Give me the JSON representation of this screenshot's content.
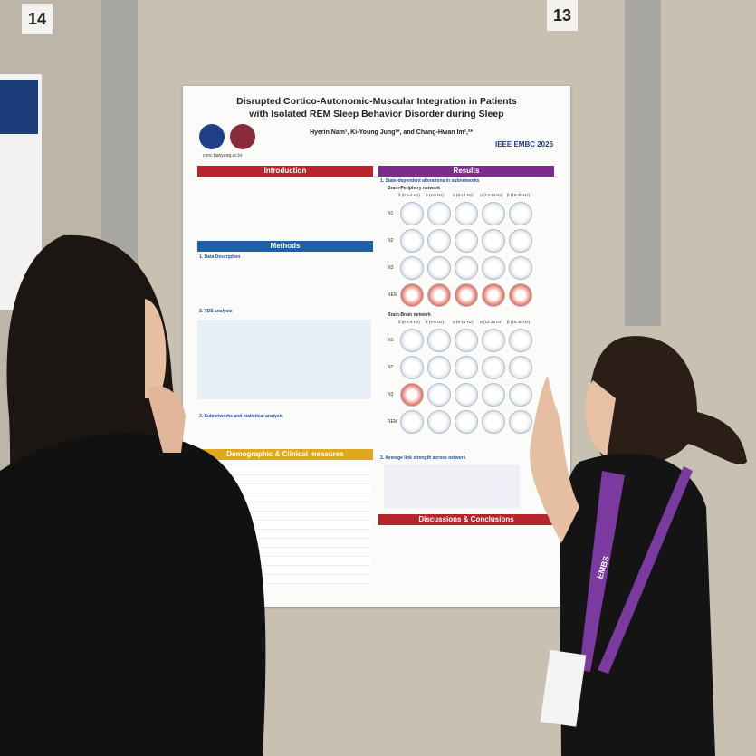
{
  "boards": [
    "14",
    "13"
  ],
  "poster": {
    "title": [
      "Disrupted Cortico-Autonomic-Muscular Integration in Patients",
      "with Isolated REM Sleep Behavior Disorder during Sleep"
    ],
    "authors": "Hyerin Nam¹, Ki-Young Jung²*, and Chang-Hwan Im¹,²*",
    "url": "conc.hanyang.ac.kr",
    "conference": "IEEE EMBC 2026",
    "sections": [
      "Introduction",
      "Methods",
      "Demographic & Clinical measures",
      "Results",
      "Discussions & Conclusions"
    ],
    "subsections": [
      "1. Data Description",
      "2. TDS analysis",
      "3. Subnetworks and statistical analysis",
      "1. State-dependent alterations in subnetworks",
      "2. Average link strength across network"
    ],
    "networks": [
      "Brain-Periphery network",
      "Brain-Brain network"
    ],
    "bands": [
      "δ (0.5-4 Hz)",
      "θ (4-8 Hz)",
      "α (8-12 Hz)",
      "σ (12-15 Hz)",
      "β (15-30 Hz)"
    ],
    "stages": [
      "N1",
      "N2",
      "N3",
      "REM"
    ]
  },
  "lanyard": "EMBS"
}
